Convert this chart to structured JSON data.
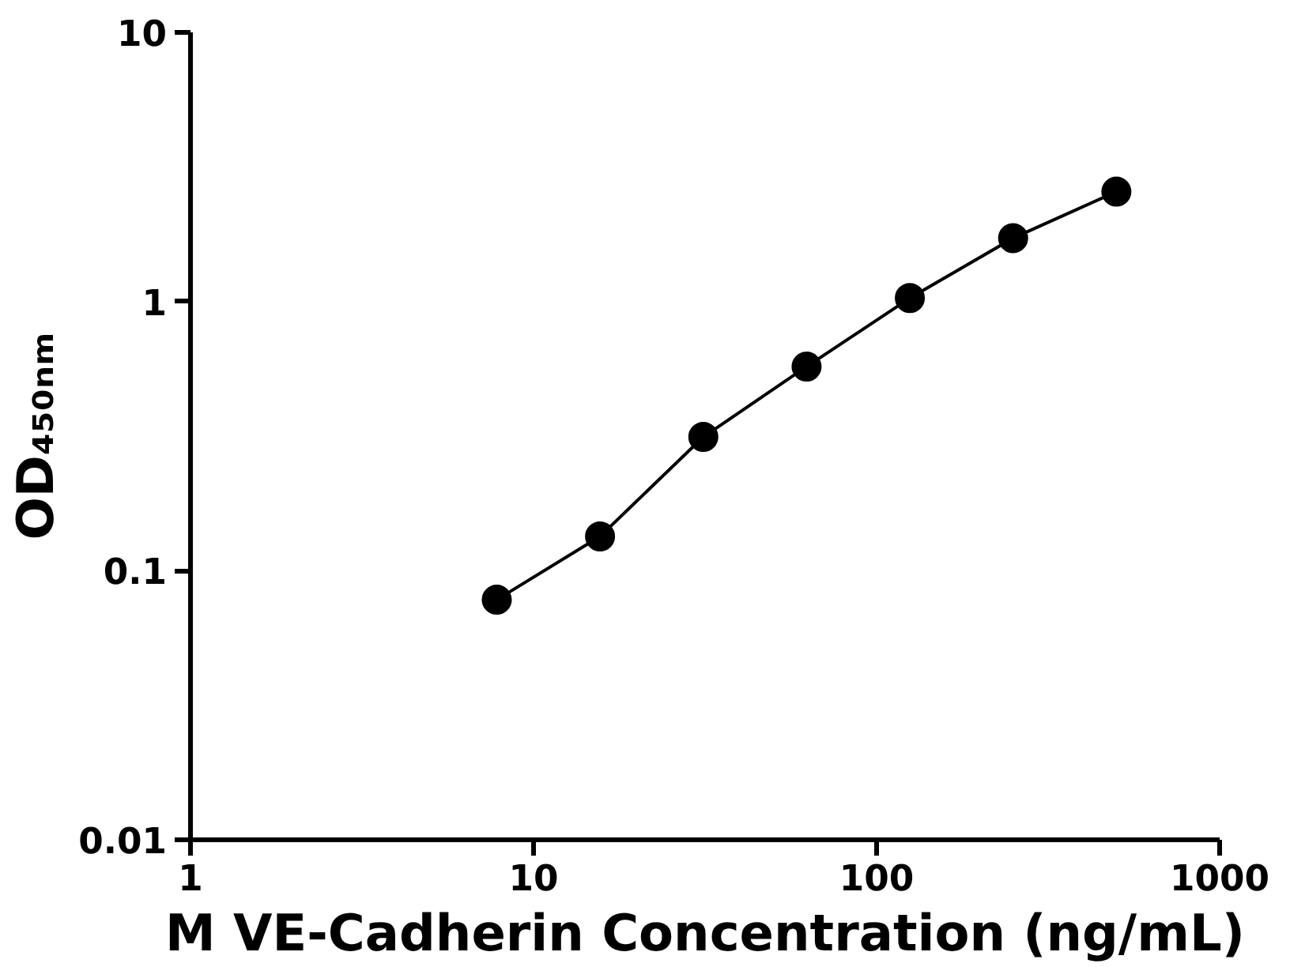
{
  "chart_data": {
    "type": "line",
    "xlabel": "M VE-Cadherin Concentration (ng/mL)",
    "ylabel": "OD₄₅₀ₙₘ",
    "log": "xy",
    "grid": false,
    "marker": "circle",
    "line_style": "solid",
    "xlim": [
      1,
      1000
    ],
    "xticks": [
      1,
      10,
      100,
      1000
    ],
    "ylim": [
      0.01,
      10
    ],
    "yticks": [
      0.01,
      0.1,
      1,
      10
    ],
    "series": [
      {
        "color": "#000000",
        "x": [
          7.8125,
          15.625,
          31.25,
          62.5,
          125,
          250,
          500
        ],
        "values": [
          0.078,
          0.134,
          0.314,
          0.573,
          1.03,
          1.72,
          2.56
        ]
      }
    ]
  }
}
